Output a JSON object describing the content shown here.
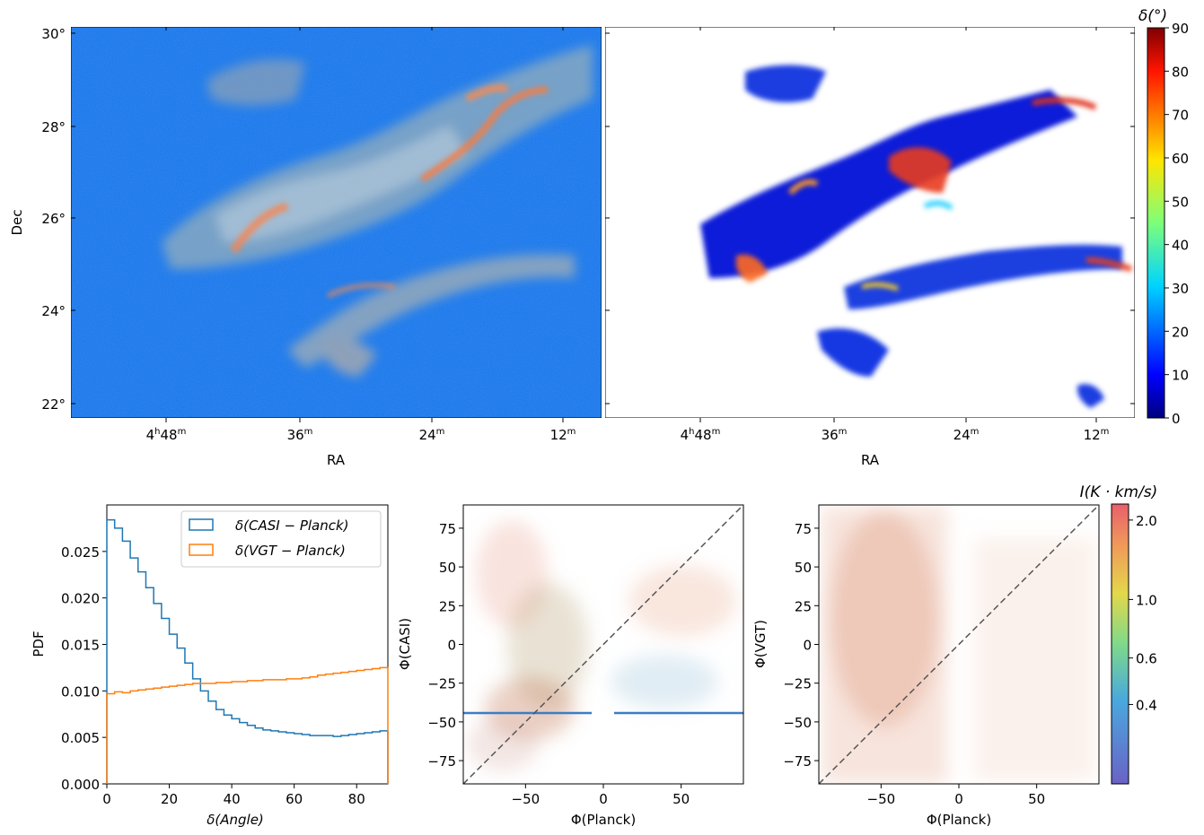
{
  "chart_data": [
    {
      "type": "heatmap",
      "panel": "top-left-map",
      "xlabel": "RA",
      "ylabel": "Dec",
      "xticks": [
        "4h48m",
        "36m",
        "24m",
        "12m"
      ],
      "xtick_parts": [
        {
          "main": "4",
          "sup1": "h",
          "mid": "48",
          "sup2": "m"
        },
        {
          "main": "",
          "sup1": "",
          "mid": "36",
          "sup2": "m"
        },
        {
          "main": "",
          "sup1": "",
          "mid": "24",
          "sup2": "m"
        },
        {
          "main": "",
          "sup1": "",
          "mid": "12",
          "sup2": "m"
        }
      ],
      "yticks": [
        "30°",
        "28°",
        "26°",
        "24°",
        "22°"
      ],
      "yvalues": [
        30,
        28,
        26,
        24,
        22
      ],
      "ylim": [
        21.7,
        30.2
      ]
    },
    {
      "type": "heatmap",
      "panel": "top-right-map",
      "xlabel": "RA",
      "xticks": [
        "4h48m",
        "36m",
        "24m",
        "12m"
      ],
      "colorbar": {
        "label": "δ(°)",
        "ticks": [
          0,
          10,
          20,
          30,
          40,
          50,
          60,
          70,
          80,
          90
        ],
        "range": [
          0,
          90
        ],
        "colormap": "jet"
      }
    },
    {
      "type": "line",
      "panel": "bottom-left-histogram",
      "xlabel": "δ(Angle)",
      "ylabel": "PDF",
      "xlim": [
        0,
        90
      ],
      "ylim": [
        0,
        0.03
      ],
      "xticks": [
        "0",
        "20",
        "40",
        "60",
        "80"
      ],
      "xtick_values": [
        0,
        20,
        40,
        60,
        80
      ],
      "yticks": [
        "0.000",
        "0.005",
        "0.010",
        "0.015",
        "0.020",
        "0.025"
      ],
      "ytick_values": [
        0,
        0.005,
        0.01,
        0.015,
        0.02,
        0.025
      ],
      "legend_position": "upper-right",
      "bin_edges": [
        0,
        2.5,
        5,
        7.5,
        10,
        12.5,
        15,
        17.5,
        20,
        22.5,
        25,
        27.5,
        30,
        32.5,
        35,
        37.5,
        40,
        42.5,
        45,
        47.5,
        50,
        52.5,
        55,
        57.5,
        60,
        62.5,
        65,
        67.5,
        70,
        72.5,
        75,
        77.5,
        80,
        82.5,
        85,
        87.5,
        90
      ],
      "series": [
        {
          "name": "δ(CASI − Planck)",
          "color": "#1f77b4",
          "values": [
            0.0284,
            0.0275,
            0.0261,
            0.0243,
            0.0228,
            0.0211,
            0.0194,
            0.0178,
            0.0161,
            0.0146,
            0.013,
            0.0113,
            0.01,
            0.0089,
            0.008,
            0.0074,
            0.007,
            0.0066,
            0.0063,
            0.006,
            0.0058,
            0.0057,
            0.0056,
            0.0055,
            0.0054,
            0.0053,
            0.0052,
            0.0052,
            0.0052,
            0.0051,
            0.0052,
            0.0053,
            0.0054,
            0.0055,
            0.0056,
            0.0057
          ]
        },
        {
          "name": "δ(VGT − Planck)",
          "color": "#ff7f0e",
          "values": [
            0.0097,
            0.0099,
            0.0098,
            0.01,
            0.0101,
            0.0102,
            0.0103,
            0.0104,
            0.0105,
            0.0106,
            0.0107,
            0.0108,
            0.0108,
            0.0108,
            0.0109,
            0.0109,
            0.011,
            0.011,
            0.0111,
            0.0111,
            0.0112,
            0.0112,
            0.0112,
            0.0113,
            0.0113,
            0.0114,
            0.0115,
            0.0117,
            0.0118,
            0.0119,
            0.012,
            0.0121,
            0.0122,
            0.0123,
            0.0124,
            0.0125
          ]
        }
      ]
    },
    {
      "type": "scatter",
      "panel": "bottom-middle",
      "xlabel": "Φ(Planck)",
      "ylabel": "Φ(CASI)",
      "xlim": [
        -90,
        90
      ],
      "ylim": [
        -90,
        90
      ],
      "xticks": [
        "−50",
        "0",
        "50"
      ],
      "xtick_values": [
        -50,
        0,
        50
      ],
      "yticks": [
        "75",
        "50",
        "25",
        "0",
        "−25",
        "−50",
        "−75"
      ],
      "ytick_values": [
        75,
        50,
        25,
        0,
        -25,
        -50,
        -75
      ],
      "reference_line": "y = x",
      "horizontal_band": -45
    },
    {
      "type": "scatter",
      "panel": "bottom-right",
      "xlabel": "Φ(Planck)",
      "ylabel": "Φ(VGT)",
      "xlim": [
        -90,
        90
      ],
      "ylim": [
        -90,
        90
      ],
      "xticks": [
        "−50",
        "0",
        "50"
      ],
      "xtick_values": [
        -50,
        0,
        50
      ],
      "yticks": [
        "75",
        "50",
        "25",
        "0",
        "−25",
        "−50",
        "−75"
      ],
      "ytick_values": [
        75,
        50,
        25,
        0,
        -25,
        -50,
        -75
      ],
      "reference_line": "y = x",
      "colorbar": {
        "label": "I(K · km/s)",
        "ticks": [
          "2.0",
          "1.0",
          "0.6",
          "0.4"
        ],
        "tick_values": [
          2.0,
          1.0,
          0.6,
          0.4
        ],
        "scale": "log",
        "range": [
          0.2,
          2.3
        ]
      }
    }
  ]
}
